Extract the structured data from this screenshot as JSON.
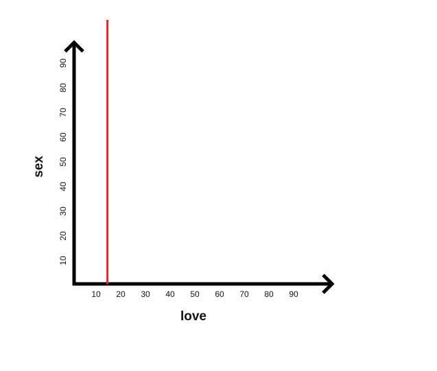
{
  "chart_data": {
    "type": "line",
    "title": "",
    "xlabel": "love",
    "ylabel": "sex",
    "x_ticks": [
      10,
      20,
      30,
      40,
      50,
      60,
      70,
      80,
      90
    ],
    "y_ticks": [
      10,
      20,
      30,
      40,
      50,
      60,
      70,
      80,
      90
    ],
    "xlim": [
      0,
      100
    ],
    "ylim": [
      0,
      100
    ],
    "grid": false,
    "series": [
      {
        "color": "#e8262a",
        "points": [
          {
            "x": 13.5,
            "y": 0
          },
          {
            "x": 13.5,
            "y": 100
          }
        ]
      }
    ],
    "axis_color": "#000000"
  }
}
